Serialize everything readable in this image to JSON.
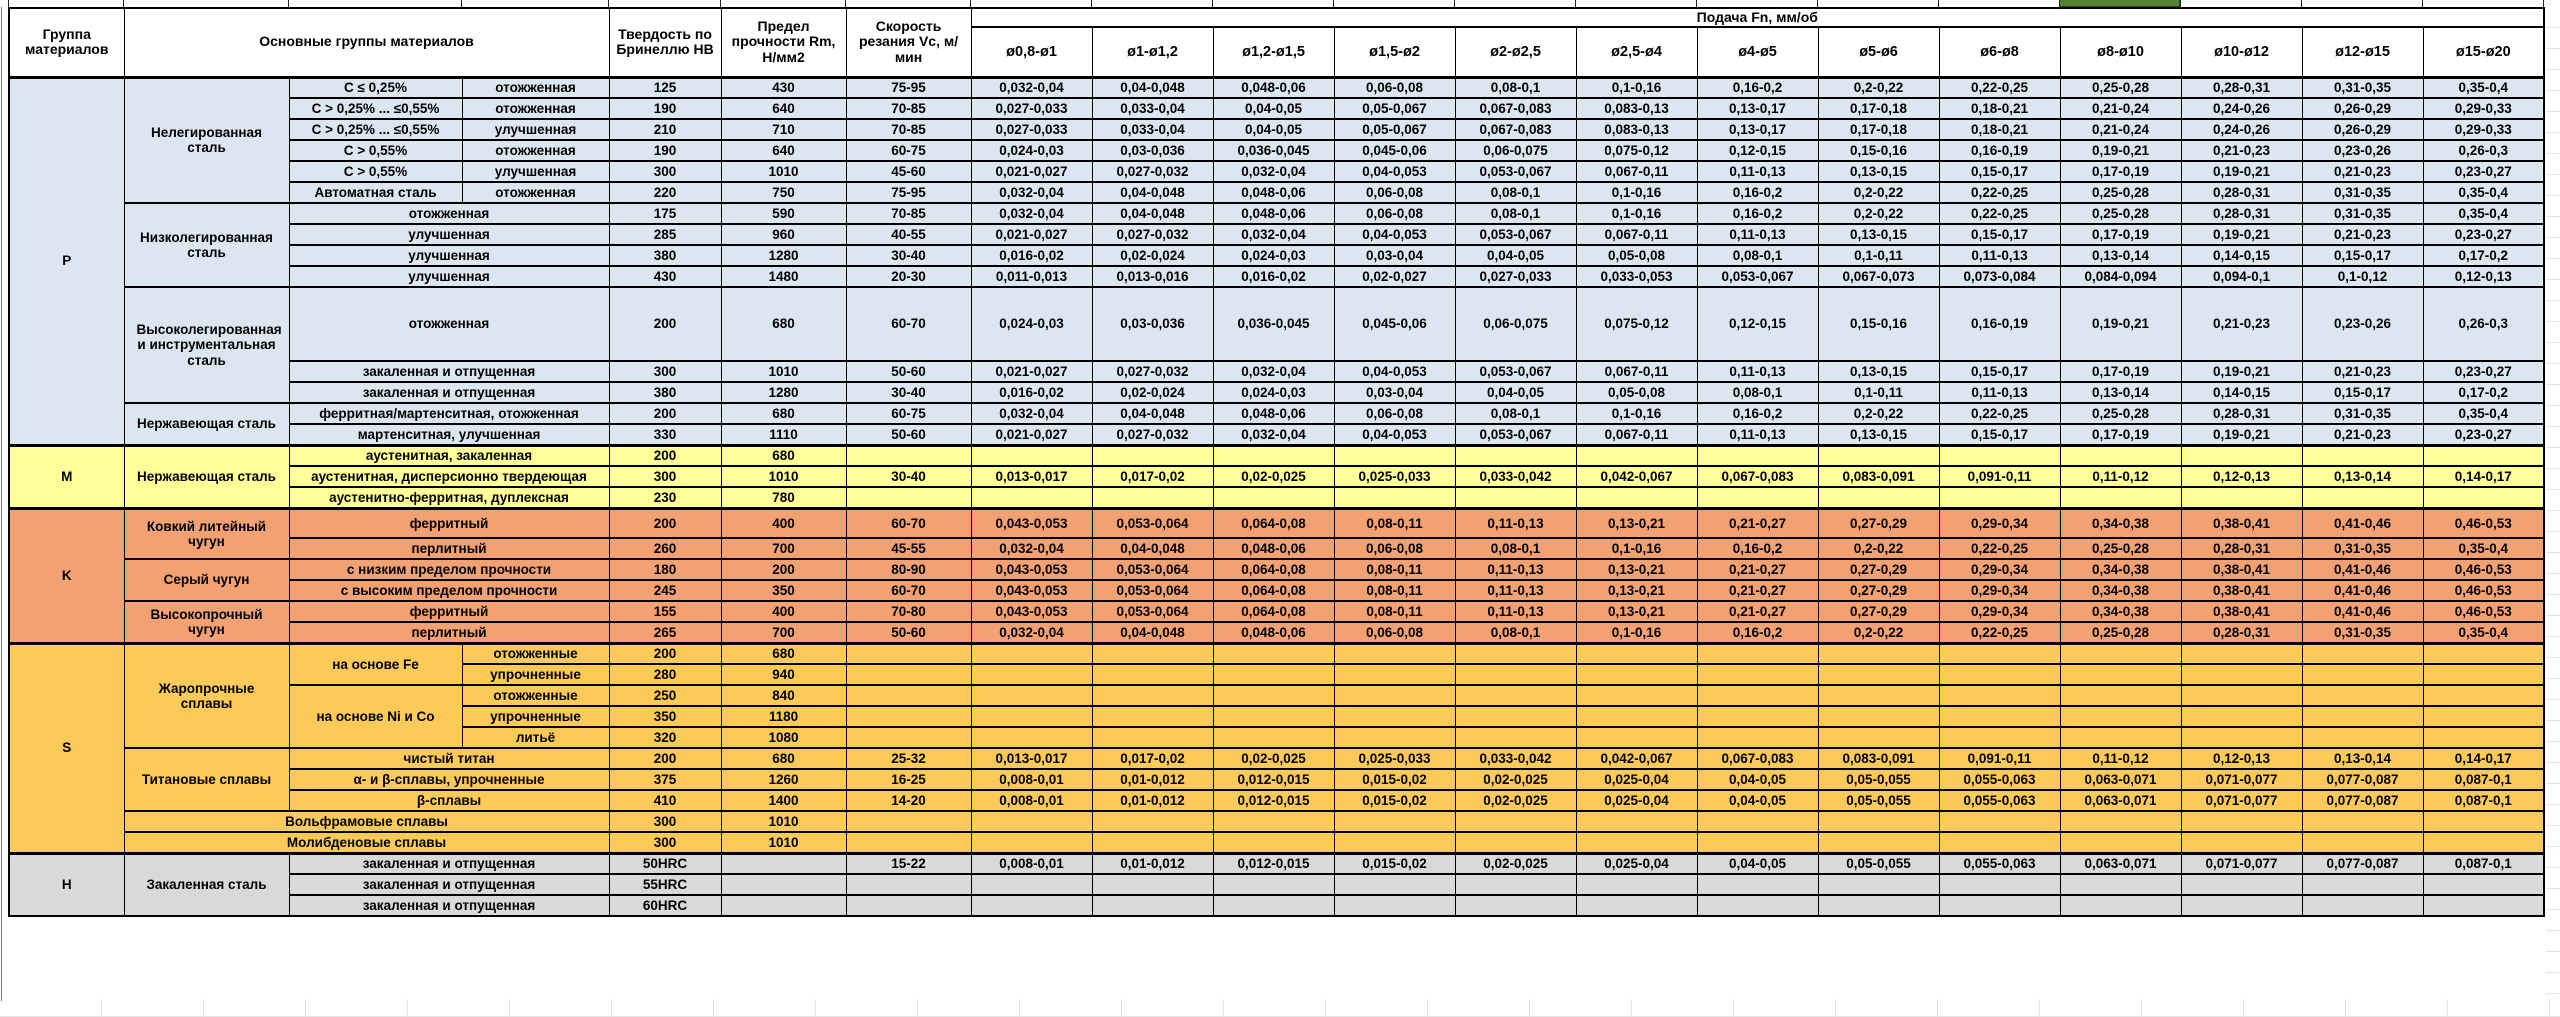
{
  "colors": {
    "p_section": "#dce6f1",
    "m_section": "#ffff99",
    "k_section": "#f2a173",
    "s_section": "#fcca58",
    "h_section": "#d9d9d9",
    "selection_green": "#538135",
    "header_bg": "#ffffff",
    "border": "#000000"
  },
  "table": {
    "headers": {
      "group": "Группа материалов",
      "main_groups": "Основные группы материалов",
      "hardness": "Твердость по Бринеллю НВ",
      "strength": "Предел прочности Rm, Н/мм2",
      "speed": "Скорость резания Vc, м/мин",
      "feed": "Подача Fn, мм/об",
      "feed_cols": [
        "ø0,8-ø1",
        "ø1-ø1,2",
        "ø1,2-ø1,5",
        "ø1,5-ø2",
        "ø2-ø2,5",
        "ø2,5-ø4",
        "ø4-ø5",
        "ø5-ø6",
        "ø6-ø8",
        "ø8-ø10",
        "ø10-ø12",
        "ø12-ø15",
        "ø15-ø20"
      ]
    },
    "feed_patterns": {
      "A": [
        "0,032-0,04",
        "0,04-0,048",
        "0,048-0,06",
        "0,06-0,08",
        "0,08-0,1",
        "0,1-0,16",
        "0,16-0,2",
        "0,2-0,22",
        "0,22-0,25",
        "0,25-0,28",
        "0,28-0,31",
        "0,31-0,35",
        "0,35-0,4"
      ],
      "B": [
        "0,027-0,033",
        "0,033-0,04",
        "0,04-0,05",
        "0,05-0,067",
        "0,067-0,083",
        "0,083-0,13",
        "0,13-0,17",
        "0,17-0,18",
        "0,18-0,21",
        "0,21-0,24",
        "0,24-0,26",
        "0,26-0,29",
        "0,29-0,33"
      ],
      "C": [
        "0,024-0,03",
        "0,03-0,036",
        "0,036-0,045",
        "0,045-0,06",
        "0,06-0,075",
        "0,075-0,12",
        "0,12-0,15",
        "0,15-0,16",
        "0,16-0,19",
        "0,19-0,21",
        "0,21-0,23",
        "0,23-0,26",
        "0,26-0,3"
      ],
      "D": [
        "0,021-0,027",
        "0,027-0,032",
        "0,032-0,04",
        "0,04-0,053",
        "0,053-0,067",
        "0,067-0,11",
        "0,11-0,13",
        "0,13-0,15",
        "0,15-0,17",
        "0,17-0,19",
        "0,19-0,21",
        "0,21-0,23",
        "0,23-0,27"
      ],
      "E": [
        "0,016-0,02",
        "0,02-0,024",
        "0,024-0,03",
        "0,03-0,04",
        "0,04-0,05",
        "0,05-0,08",
        "0,08-0,1",
        "0,1-0,11",
        "0,11-0,13",
        "0,13-0,14",
        "0,14-0,15",
        "0,15-0,17",
        "0,17-0,2"
      ],
      "F": [
        "0,011-0,013",
        "0,013-0,016",
        "0,016-0,02",
        "0,02-0,027",
        "0,027-0,033",
        "0,033-0,053",
        "0,053-0,067",
        "0,067-0,073",
        "0,073-0,084",
        "0,084-0,094",
        "0,094-0,1",
        "0,1-0,12",
        "0,12-0,13"
      ],
      "G": [
        "0,013-0,017",
        "0,017-0,02",
        "0,02-0,025",
        "0,025-0,033",
        "0,033-0,042",
        "0,042-0,067",
        "0,067-0,083",
        "0,083-0,091",
        "0,091-0,11",
        "0,11-0,12",
        "0,12-0,13",
        "0,13-0,14",
        "0,14-0,17"
      ],
      "H": [
        "0,043-0,053",
        "0,053-0,064",
        "0,064-0,08",
        "0,08-0,11",
        "0,11-0,13",
        "0,13-0,21",
        "0,21-0,27",
        "0,27-0,29",
        "0,29-0,34",
        "0,34-0,38",
        "0,38-0,41",
        "0,41-0,46",
        "0,46-0,53"
      ],
      "I": [
        "0,008-0,01",
        "0,01-0,012",
        "0,012-0,015",
        "0,015-0,02",
        "0,02-0,025",
        "0,025-0,04",
        "0,04-0,05",
        "0,05-0,055",
        "0,055-0,063",
        "0,063-0,071",
        "0,071-0,077",
        "0,077-0,087",
        "0,087-0,1"
      ],
      "EMPTY": [
        "",
        "",
        "",
        "",
        "",
        "",
        "",
        "",
        "",
        "",
        "",
        "",
        ""
      ]
    },
    "sections": [
      {
        "letter": "P",
        "color": "#dce6f1",
        "groups": [
          {
            "name": "Нелегированная сталь",
            "rows": [
              {
                "sub": "C ≤ 0,25%",
                "treat": "отожженная",
                "hb": "125",
                "rm": "430",
                "vc": "75-95",
                "fp": "A"
              },
              {
                "sub": "C > 0,25% ... ≤0,55%",
                "treat": "отожженная",
                "hb": "190",
                "rm": "640",
                "vc": "70-85",
                "fp": "B"
              },
              {
                "sub": "C > 0,25% ... ≤0,55%",
                "treat": "улучшенная",
                "hb": "210",
                "rm": "710",
                "vc": "70-85",
                "fp": "B"
              },
              {
                "sub": "C > 0,55%",
                "treat": "отожженная",
                "hb": "190",
                "rm": "640",
                "vc": "60-75",
                "fp": "C"
              },
              {
                "sub": "C > 0,55%",
                "treat": "улучшенная",
                "hb": "300",
                "rm": "1010",
                "vc": "45-60",
                "fp": "D"
              },
              {
                "sub": "Автоматная сталь",
                "treat": "отожженная",
                "hb": "220",
                "rm": "750",
                "vc": "75-95",
                "fp": "A"
              }
            ]
          },
          {
            "name": "Низколегированная сталь",
            "rows": [
              {
                "treat": "отожженная",
                "wide": true,
                "hb": "175",
                "rm": "590",
                "vc": "70-85",
                "fp": "A"
              },
              {
                "treat": "улучшенная",
                "wide": true,
                "hb": "285",
                "rm": "960",
                "vc": "40-55",
                "fp": "D"
              },
              {
                "treat": "улучшенная",
                "wide": true,
                "hb": "380",
                "rm": "1280",
                "vc": "30-40",
                "fp": "E"
              },
              {
                "treat": "улучшенная",
                "wide": true,
                "hb": "430",
                "rm": "1480",
                "vc": "20-30",
                "fp": "F"
              }
            ]
          },
          {
            "name": "Высоколегированная и инструментальная сталь",
            "rows": [
              {
                "treat": "отожженная",
                "wide": true,
                "h": 74,
                "hb": "200",
                "rm": "680",
                "vc": "60-70",
                "fp": "C"
              },
              {
                "treat": "закаленная и отпущенная",
                "wide": true,
                "hb": "300",
                "rm": "1010",
                "vc": "50-60",
                "fp": "D"
              },
              {
                "treat": "закаленная и отпущенная",
                "wide": true,
                "hb": "380",
                "rm": "1280",
                "vc": "30-40",
                "fp": "E"
              }
            ]
          },
          {
            "name": "Нержавеющая сталь",
            "rows": [
              {
                "treat": "ферритная/мартенситная, отожженная",
                "wide": true,
                "hb": "200",
                "rm": "680",
                "vc": "60-75",
                "fp": "A"
              },
              {
                "treat": "мартенситная, улучшенная",
                "wide": true,
                "hb": "330",
                "rm": "1110",
                "vc": "50-60",
                "fp": "D"
              }
            ]
          }
        ]
      },
      {
        "letter": "M",
        "color": "#ffff99",
        "groups": [
          {
            "name": "Нержавеющая сталь",
            "rows": [
              {
                "treat": "аустенитная, закаленная",
                "wide": true,
                "hb": "200",
                "rm": "680",
                "vc": "",
                "fp": "EMPTY"
              },
              {
                "treat": "аустенитная, дисперсионно твердеющая",
                "wide": true,
                "hb": "300",
                "rm": "1010",
                "vc": "30-40",
                "fp": "G"
              },
              {
                "treat": "аустенитно-ферритная, дуплексная",
                "wide": true,
                "hb": "230",
                "rm": "780",
                "vc": "",
                "fp": "EMPTY"
              }
            ]
          }
        ]
      },
      {
        "letter": "K",
        "color": "#f2a173",
        "groups": [
          {
            "name": "Ковкий литейный чугун",
            "rows": [
              {
                "treat": "ферритный",
                "wide": true,
                "h": 30,
                "hb": "200",
                "rm": "400",
                "vc": "60-70",
                "fp": "H"
              },
              {
                "treat": "перлитный",
                "wide": true,
                "hb": "260",
                "rm": "700",
                "vc": "45-55",
                "fp": "A"
              }
            ]
          },
          {
            "name": "Серый чугун",
            "rows": [
              {
                "treat": "с низким пределом прочности",
                "wide": true,
                "hb": "180",
                "rm": "200",
                "vc": "80-90",
                "fp": "H"
              },
              {
                "treat": "с высоким пределом прочности",
                "wide": true,
                "hb": "245",
                "rm": "350",
                "vc": "60-70",
                "fp": "H"
              }
            ]
          },
          {
            "name": "Высокопрочный чугун",
            "rows": [
              {
                "treat": "ферритный",
                "wide": true,
                "hb": "155",
                "rm": "400",
                "vc": "70-80",
                "fp": "H"
              },
              {
                "treat": "перлитный",
                "wide": true,
                "hb": "265",
                "rm": "700",
                "vc": "50-60",
                "fp": "A"
              }
            ]
          }
        ]
      },
      {
        "letter": "S",
        "color": "#fcca58",
        "groups": [
          {
            "name": "Жаропрочные сплавы",
            "rows": [
              {
                "sub": "на основе Fe",
                "subspan": 2,
                "treat": "отожженные",
                "hb": "200",
                "rm": "680",
                "vc": "",
                "fp": "EMPTY"
              },
              {
                "covered": true,
                "treat": "упрочненные",
                "hb": "280",
                "rm": "940",
                "vc": "",
                "fp": "EMPTY"
              },
              {
                "sub": "на основе Ni и Co",
                "subspan": 3,
                "treat": "отожженные",
                "hb": "250",
                "rm": "840",
                "vc": "",
                "fp": "EMPTY"
              },
              {
                "covered": true,
                "treat": "упрочненные",
                "hb": "350",
                "rm": "1180",
                "vc": "",
                "fp": "EMPTY"
              },
              {
                "covered": true,
                "treat": "литьё",
                "hb": "320",
                "rm": "1080",
                "vc": "",
                "fp": "EMPTY"
              }
            ]
          },
          {
            "name": "Титановые сплавы",
            "rows": [
              {
                "treat": "чистый титан",
                "wide": true,
                "hb": "200",
                "rm": "680",
                "vc": "25-32",
                "fp": "G"
              },
              {
                "treat": "α- и β-сплавы, упрочненные",
                "wide": true,
                "hb": "375",
                "rm": "1260",
                "vc": "16-25",
                "fp": "I"
              },
              {
                "treat": "β-сплавы",
                "wide": true,
                "hb": "410",
                "rm": "1400",
                "vc": "14-20",
                "fp": "I"
              }
            ]
          },
          {
            "name": "Вольфрамовые сплавы",
            "full": true,
            "rows": [
              {
                "hb": "300",
                "rm": "1010",
                "vc": "",
                "fp": "EMPTY"
              }
            ]
          },
          {
            "name": "Молибденовые сплавы",
            "full": true,
            "rows": [
              {
                "hb": "300",
                "rm": "1010",
                "vc": "",
                "fp": "EMPTY"
              }
            ]
          }
        ]
      },
      {
        "letter": "H",
        "color": "#d9d9d9",
        "groups": [
          {
            "name": "Закаленная сталь",
            "rows": [
              {
                "treat": "закаленная и отпущенная",
                "wide": true,
                "hb": "50HRC",
                "rm": "",
                "vc": "15-22",
                "fp": "I"
              },
              {
                "treat": "закаленная и отпущенная",
                "wide": true,
                "hb": "55HRC",
                "rm": "",
                "vc": "",
                "fp": "EMPTY"
              },
              {
                "treat": "закаленная и отпущенная",
                "wide": true,
                "hb": "60HRC",
                "rm": "",
                "vc": "",
                "fp": "EMPTY"
              }
            ]
          }
        ]
      }
    ]
  }
}
